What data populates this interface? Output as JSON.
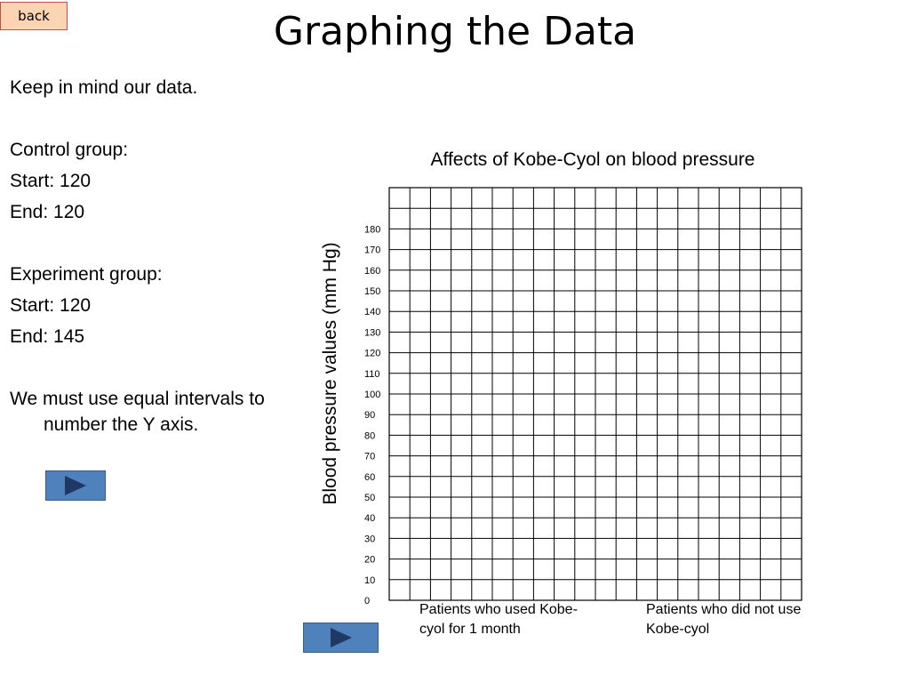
{
  "nav": {
    "back_label": "back"
  },
  "page": {
    "title": "Graphing the Data"
  },
  "notes": {
    "intro": "Keep in mind our data.",
    "control_heading": "Control group:",
    "control_start": "Start: 120",
    "control_end": "End: 120",
    "experiment_heading": "Experiment group:",
    "experiment_start": "Start: 120",
    "experiment_end": "End: 145",
    "tip": "We must use equal intervals to number the Y axis."
  },
  "colors": {
    "button_fill": "#4f81bd",
    "back_fill": "#fbd4b4"
  },
  "chart_data": {
    "type": "table",
    "title": "Affects of Kobe-Cyol on blood pressure",
    "ylabel": "Blood pressure values (mm  Hg)",
    "xlabel": "",
    "y_ticks": [
      0,
      10,
      20,
      30,
      40,
      50,
      60,
      70,
      80,
      90,
      100,
      110,
      120,
      130,
      140,
      150,
      160,
      170,
      180
    ],
    "ylim": [
      0,
      180
    ],
    "categories": [
      "Patients who used Kobe-cyol for 1 month",
      "Patients who did not use Kobe-cyol"
    ],
    "grid": true,
    "grid_columns": 20,
    "grid_rows": 20
  }
}
